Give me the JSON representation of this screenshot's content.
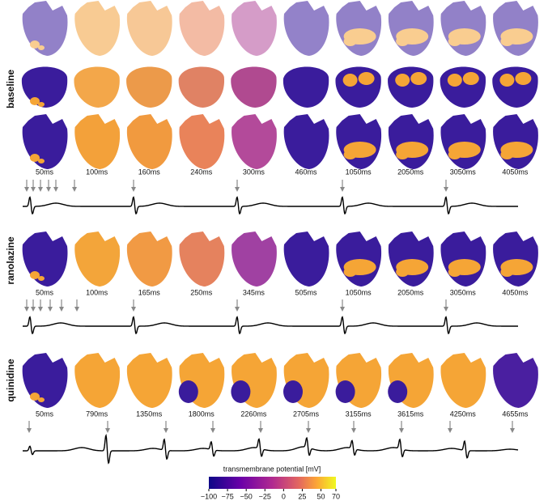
{
  "panels": [
    {
      "label": "baseline",
      "times": [
        "50ms",
        "100ms",
        "160ms",
        "240ms",
        "300ms",
        "460ms",
        "1050ms",
        "2050ms",
        "3050ms",
        "4050ms"
      ]
    },
    {
      "label": "ranolazine",
      "times": [
        "50ms",
        "100ms",
        "165ms",
        "250ms",
        "345ms",
        "505ms",
        "1050ms",
        "2050ms",
        "3050ms",
        "4050ms"
      ]
    },
    {
      "label": "quinidine",
      "times": [
        "50ms",
        "790ms",
        "1350ms",
        "1800ms",
        "2260ms",
        "2705ms",
        "3155ms",
        "3615ms",
        "4250ms",
        "4655ms"
      ]
    }
  ],
  "colorbar": {
    "title": "transmembrane potential [mV]",
    "lim": [
      -100,
      70
    ],
    "ticks": [
      {
        "value": -100,
        "label": "−100"
      },
      {
        "value": -75,
        "label": "−75"
      },
      {
        "value": -50,
        "label": "−50"
      },
      {
        "value": -25,
        "label": "−25"
      },
      0,
      25,
      50,
      70
    ]
  }
}
